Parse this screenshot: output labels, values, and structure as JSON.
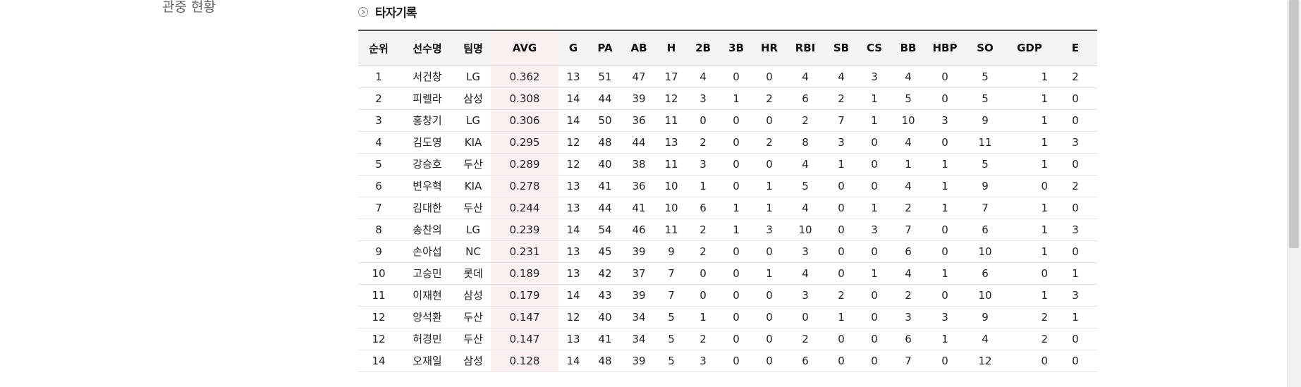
{
  "sidebar": {
    "link_label": "관중 현황"
  },
  "section": {
    "title": "타자기록",
    "icon": "circle-arrow-icon"
  },
  "table": {
    "columns": [
      "순위",
      "선수명",
      "팀명",
      "AVG",
      "G",
      "PA",
      "AB",
      "H",
      "2B",
      "3B",
      "HR",
      "RBI",
      "SB",
      "CS",
      "BB",
      "HBP",
      "SO",
      "GDP",
      "E"
    ],
    "rows": [
      [
        "1",
        "서건창",
        "LG",
        "0.362",
        "13",
        "51",
        "47",
        "17",
        "4",
        "0",
        "0",
        "4",
        "4",
        "3",
        "4",
        "0",
        "5",
        "1",
        "2"
      ],
      [
        "2",
        "피렐라",
        "삼성",
        "0.308",
        "14",
        "44",
        "39",
        "12",
        "3",
        "1",
        "2",
        "6",
        "2",
        "1",
        "5",
        "0",
        "5",
        "1",
        "0"
      ],
      [
        "3",
        "홍창기",
        "LG",
        "0.306",
        "14",
        "50",
        "36",
        "11",
        "0",
        "0",
        "0",
        "2",
        "7",
        "1",
        "10",
        "3",
        "9",
        "1",
        "0"
      ],
      [
        "4",
        "김도영",
        "KIA",
        "0.295",
        "12",
        "48",
        "44",
        "13",
        "2",
        "0",
        "2",
        "8",
        "3",
        "0",
        "4",
        "0",
        "11",
        "1",
        "3"
      ],
      [
        "5",
        "강승호",
        "두산",
        "0.289",
        "12",
        "40",
        "38",
        "11",
        "3",
        "0",
        "0",
        "4",
        "1",
        "0",
        "1",
        "1",
        "5",
        "1",
        "0"
      ],
      [
        "6",
        "변우혁",
        "KIA",
        "0.278",
        "13",
        "41",
        "36",
        "10",
        "1",
        "0",
        "1",
        "5",
        "0",
        "0",
        "4",
        "1",
        "9",
        "0",
        "2"
      ],
      [
        "7",
        "김대한",
        "두산",
        "0.244",
        "13",
        "44",
        "41",
        "10",
        "6",
        "1",
        "1",
        "4",
        "0",
        "1",
        "2",
        "1",
        "7",
        "1",
        "0"
      ],
      [
        "8",
        "송찬의",
        "LG",
        "0.239",
        "14",
        "54",
        "46",
        "11",
        "2",
        "1",
        "3",
        "10",
        "0",
        "3",
        "7",
        "0",
        "6",
        "1",
        "3"
      ],
      [
        "9",
        "손아섭",
        "NC",
        "0.231",
        "13",
        "45",
        "39",
        "9",
        "2",
        "0",
        "0",
        "3",
        "0",
        "0",
        "6",
        "0",
        "10",
        "1",
        "0"
      ],
      [
        "10",
        "고승민",
        "롯데",
        "0.189",
        "13",
        "42",
        "37",
        "7",
        "0",
        "0",
        "1",
        "4",
        "0",
        "1",
        "4",
        "1",
        "6",
        "0",
        "1"
      ],
      [
        "11",
        "이재현",
        "삼성",
        "0.179",
        "14",
        "43",
        "39",
        "7",
        "0",
        "0",
        "0",
        "3",
        "2",
        "0",
        "2",
        "0",
        "10",
        "1",
        "3"
      ],
      [
        "12",
        "양석환",
        "두산",
        "0.147",
        "12",
        "40",
        "34",
        "5",
        "1",
        "0",
        "0",
        "0",
        "1",
        "0",
        "3",
        "3",
        "9",
        "2",
        "1"
      ],
      [
        "12",
        "허경민",
        "두산",
        "0.147",
        "13",
        "41",
        "34",
        "5",
        "2",
        "0",
        "0",
        "2",
        "0",
        "0",
        "6",
        "1",
        "4",
        "2",
        "0"
      ],
      [
        "14",
        "오재일",
        "삼성",
        "0.128",
        "14",
        "48",
        "39",
        "5",
        "3",
        "0",
        "0",
        "6",
        "0",
        "0",
        "7",
        "0",
        "12",
        "0",
        "0"
      ]
    ]
  }
}
